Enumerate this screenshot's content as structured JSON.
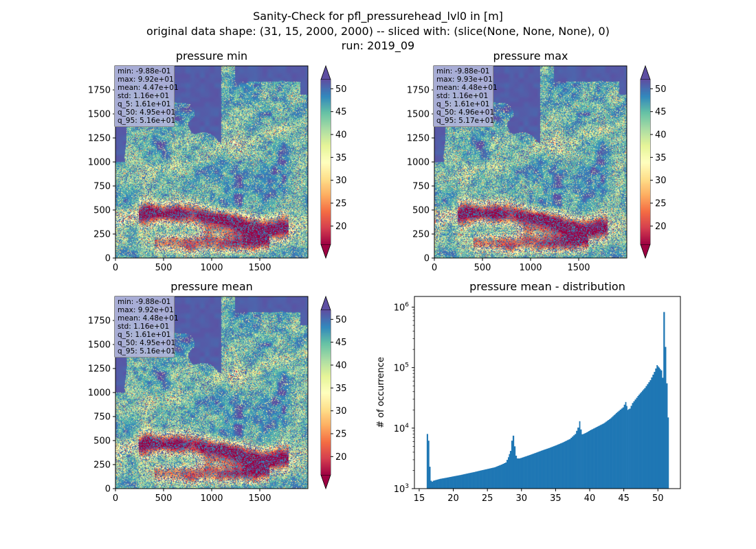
{
  "figure": {
    "title_lines": [
      "Sanity-Check for pfl_pressurehead_lvl0 in [m]",
      "original data shape: (31, 15, 2000, 2000) -- sliced with: (slice(None, None, None), 0)",
      "run: 2019_09"
    ]
  },
  "chart_data": [
    {
      "type": "heatmap",
      "title": "pressure min",
      "x_ticks": [
        0,
        500,
        1000,
        1500
      ],
      "y_ticks": [
        0,
        250,
        500,
        750,
        1000,
        1250,
        1500,
        1750
      ],
      "xlim": [
        0,
        2000
      ],
      "ylim": [
        0,
        2000
      ],
      "colormap": "Spectral",
      "colorbar": {
        "ticks": [
          20,
          25,
          30,
          35,
          40,
          45,
          50
        ],
        "range": [
          16,
          52
        ],
        "extend": "both"
      },
      "stats": [
        "min: -9.88e-01",
        "max: 9.92e+01",
        "mean: 4.47e+01",
        "std: 1.16e+01",
        "q_5: 1.61e+01",
        "q_50: 4.95e+01",
        "q_95: 5.16e+01"
      ]
    },
    {
      "type": "heatmap",
      "title": "pressure max",
      "x_ticks": [
        0,
        500,
        1000,
        1500
      ],
      "y_ticks": [
        0,
        250,
        500,
        750,
        1000,
        1250,
        1500,
        1750
      ],
      "xlim": [
        0,
        2000
      ],
      "ylim": [
        0,
        2000
      ],
      "colormap": "Spectral",
      "colorbar": {
        "ticks": [
          20,
          25,
          30,
          35,
          40,
          45,
          50
        ],
        "range": [
          16,
          52
        ],
        "extend": "both"
      },
      "stats": [
        "min: -9.88e-01",
        "max: 9.93e+01",
        "mean: 4.48e+01",
        "std: 1.16e+01",
        "q_5: 1.61e+01",
        "q_50: 4.96e+01",
        "q_95: 5.17e+01"
      ]
    },
    {
      "type": "heatmap",
      "title": "pressure mean",
      "x_ticks": [
        0,
        500,
        1000,
        1500
      ],
      "y_ticks": [
        0,
        250,
        500,
        750,
        1000,
        1250,
        1500,
        1750
      ],
      "xlim": [
        0,
        2000
      ],
      "ylim": [
        0,
        2000
      ],
      "colormap": "Spectral",
      "colorbar": {
        "ticks": [
          20,
          25,
          30,
          35,
          40,
          45,
          50
        ],
        "range": [
          16,
          52
        ],
        "extend": "both"
      },
      "stats": [
        "min: -9.88e-01",
        "max: 9.92e+01",
        "mean: 4.48e+01",
        "std: 1.16e+01",
        "q_5: 1.61e+01",
        "q_50: 4.95e+01",
        "q_95: 5.16e+01"
      ]
    },
    {
      "type": "bar",
      "title": "pressure mean - distribution",
      "xlabel": "",
      "ylabel": "# of occurrence",
      "y_scale": "log",
      "xlim": [
        14.3,
        53.3
      ],
      "ylim": [
        1000,
        1500000
      ],
      "x_ticks": [
        15,
        20,
        25,
        30,
        35,
        40,
        45,
        50
      ],
      "y_tick_exponents": [
        3,
        4,
        5,
        6
      ],
      "bar_color": "#1f77b4",
      "bin_width": 0.18,
      "x": [
        16.1,
        16.28,
        16.46,
        16.64,
        16.82,
        17.0,
        17.5,
        18.0,
        19.0,
        20.0,
        21.0,
        22.0,
        23.0,
        24.0,
        25.0,
        26.0,
        27.0,
        27.6,
        28.0,
        28.3,
        28.5,
        28.7,
        28.9,
        29.1,
        29.3,
        29.6,
        30.0,
        31.0,
        32.0,
        33.0,
        34.0,
        35.0,
        36.0,
        37.0,
        37.8,
        38.2,
        38.45,
        38.6,
        38.8,
        39.0,
        39.5,
        40.0,
        41.0,
        42.0,
        43.0,
        44.0,
        44.8,
        45.2,
        45.5,
        45.8,
        46.2,
        47.0,
        48.0,
        48.8,
        49.4,
        49.8,
        50.1,
        50.4,
        50.6,
        50.8,
        51.0,
        51.2,
        51.4
      ],
      "y": [
        8000,
        6200,
        2300,
        1350,
        1300,
        1350,
        1400,
        1450,
        1520,
        1600,
        1680,
        1780,
        1880,
        2000,
        2120,
        2250,
        2500,
        2700,
        3300,
        4200,
        6200,
        7500,
        5000,
        3500,
        3150,
        3150,
        3250,
        3550,
        3900,
        4300,
        4700,
        5200,
        5800,
        6600,
        8000,
        10200,
        13000,
        9500,
        7900,
        8000,
        8500,
        9200,
        10500,
        12000,
        14500,
        18500,
        22000,
        27000,
        20000,
        21000,
        26000,
        34000,
        46000,
        62000,
        85000,
        110000,
        100000,
        90000,
        68000,
        830000,
        220000,
        55000,
        15000
      ]
    }
  ]
}
